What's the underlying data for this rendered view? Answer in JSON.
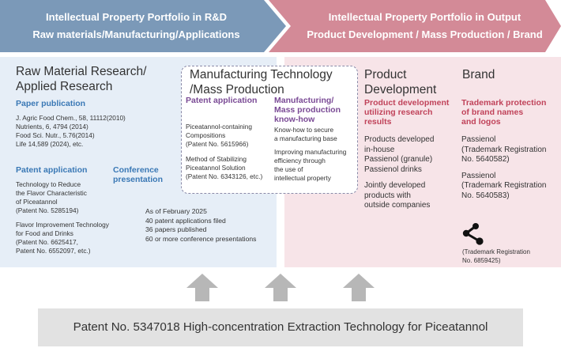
{
  "banner_left": {
    "line1": "Intellectual Property Portfolio in R&D",
    "line2": "Raw materials/Manufacturing/Applications"
  },
  "banner_right": {
    "line1": "Intellectual Property Portfolio in Output",
    "line2": "Product Development / Mass Production / Brand"
  },
  "raw": {
    "title": [
      "Raw Material Research/",
      "Applied Research"
    ],
    "paper_heading": "Paper publication",
    "papers": [
      "J. Agric Food Chem., 58, 11112(2010)",
      "Nutrients, 6, 4794 (2014)",
      "Food Sci. Nutr., 5.76(2014)",
      "Life 14,589 (2024), etc."
    ],
    "patent_heading": "Patent application",
    "patent_items": [
      "Technology to Reduce",
      "the Flavor Characteristic",
      "of Piceatannol",
      "(Patent No. 5285194)",
      "",
      "Flavor Improvement Technology",
      "for Food and Drinks",
      "(Patent No. 6625417,",
      "Patent No. 6552097, etc.)"
    ],
    "conference_heading": [
      "Conference",
      "presentation"
    ]
  },
  "stats": [
    "As of February 2025",
    "40 patent applications filed",
    "36 papers published",
    "60 or more conference presentations"
  ],
  "manufacturing": {
    "title": [
      "Manufacturing Technology",
      "/Mass Production"
    ],
    "patent_heading": "Patent application",
    "patent_items": [
      "Piceatannol-containing",
      "Compositions",
      "(Patent No. 5615966)",
      "",
      "Method of Stabilizing",
      "Piceatannol Solution",
      "(Patent No. 6343126, etc.)"
    ],
    "knowhow_heading": [
      "Manufacturing/",
      "Mass production",
      "know-how"
    ],
    "knowhow_items": [
      "Know-how to secure",
      "a manufacturing base",
      "",
      "Improving manufacturing",
      "efficiency through",
      "the use of",
      "intellectual property"
    ]
  },
  "product": {
    "title": [
      "Product",
      "Development"
    ],
    "heading": [
      "Product development",
      "utilizing research",
      "results"
    ],
    "items": [
      "Products developed",
      "in-house",
      "Passienol (granule)",
      "Passienol drinks",
      "",
      "Jointly developed",
      "products with",
      "outside companies"
    ]
  },
  "brand": {
    "title": "Brand",
    "heading": [
      "Trademark protection",
      "of brand names",
      "and logos"
    ],
    "items": [
      "Passienol",
      "(Trademark Registration",
      "No. 5640582)",
      "",
      "Passienol",
      "(Trademark Registration",
      "No. 5640583)"
    ],
    "logo_caption": [
      "(Trademark Registration",
      "No. 6859425)"
    ],
    "logo_icon": "share-node-icon"
  },
  "bottom": "Patent No. 5347018 High-concentration Extraction Technology for Piceatannol",
  "colors": {
    "banner_left": "#7b99b8",
    "banner_right": "#d38a97",
    "blue": "#3a78b5",
    "purple": "#7a4a95",
    "red": "#c0435a",
    "arrow": "#b7b7b7"
  }
}
